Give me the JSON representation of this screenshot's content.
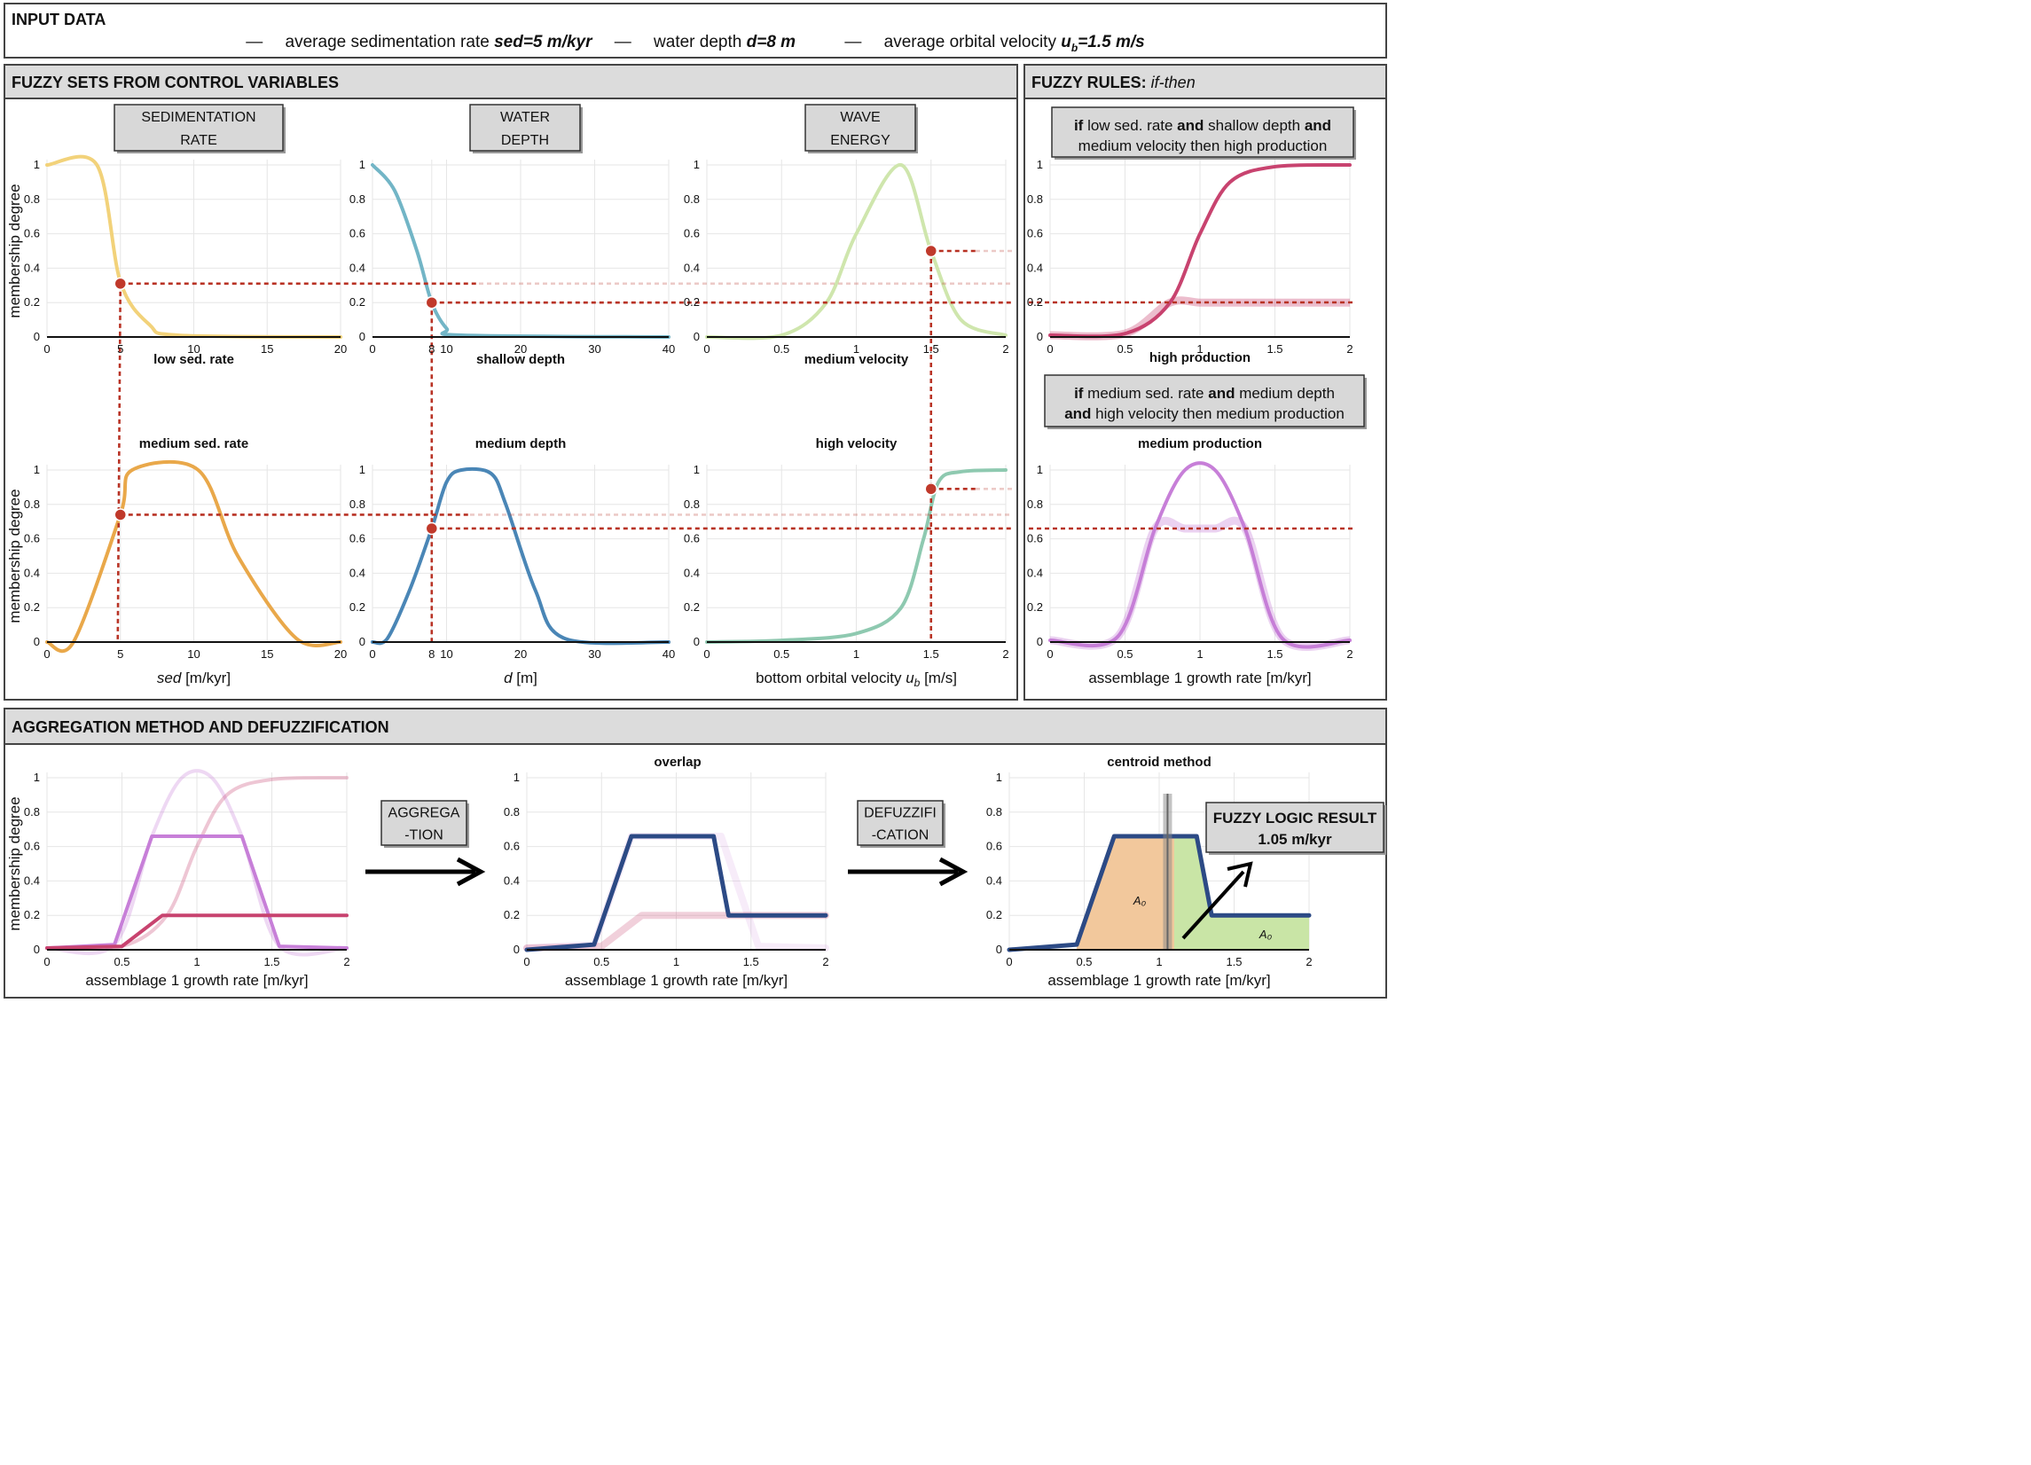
{
  "input_data": {
    "title": "INPUT DATA",
    "items": [
      {
        "dash": "—",
        "text": "average sedimentation rate ",
        "value": "sed=5 m/kyr"
      },
      {
        "dash": "—",
        "text": "water depth ",
        "value": "d=8 m"
      },
      {
        "dash": "—",
        "text": "average orbital velocity ",
        "value": "u_b=1.5 m/s"
      }
    ]
  },
  "fuzzy_sets": {
    "title": "FUZZY SETS FROM CONTROL VARIABLES",
    "ylabel": "membership degree",
    "variables": [
      {
        "box": [
          "SEDIMENTATION",
          "RATE"
        ],
        "set_top": "low sed. rate",
        "set_bottom": "medium sed. rate",
        "xlabel_italic": "sed",
        "xlabel_rest": " [m/kyr]",
        "ticks": [
          "0",
          "5",
          "10",
          "15",
          "20"
        ],
        "input_tick": "5"
      },
      {
        "box": [
          "WATER",
          "DEPTH"
        ],
        "set_top": "shallow depth",
        "set_bottom": "medium depth",
        "xlabel_italic": "d",
        "xlabel_rest": " [m]",
        "ticks": [
          "0",
          "8",
          "10",
          "20",
          "30",
          "40"
        ],
        "input_tick": "8"
      },
      {
        "box": [
          "WAVE",
          "ENERGY"
        ],
        "set_top": "medium velocity",
        "set_bottom": "high velocity",
        "xlabel_italic": "",
        "xlabel_rest": "bottom orbital velocity u_b [m/s]",
        "ticks": [
          "0",
          "0.5",
          "1",
          "1.5",
          "2"
        ],
        "input_tick": "1.5"
      }
    ],
    "y_ticks": [
      "0",
      "0.2",
      "0.4",
      "0.6",
      "0.8",
      "1"
    ]
  },
  "fuzzy_rules": {
    "title": "FUZZY RULES",
    "title_suffix": "if-then",
    "rule1": [
      "if low sed. rate and shallow depth and",
      "medium velocity then high production"
    ],
    "rule2": [
      "if medium sed. rate and medium depth",
      "and high velocity then medium production"
    ],
    "set_top": "high production",
    "set_bottom": "medium production",
    "xlabel": "assemblage 1 growth rate [m/kyr]",
    "x_ticks": [
      "0",
      "0.5",
      "1",
      "1.5",
      "2"
    ]
  },
  "aggregation": {
    "title": "AGGREGATION  METHOD AND DEFUZZIFICATION",
    "step1": [
      "AGGREGA",
      "-TION"
    ],
    "step2": [
      "DEFUZZIFI",
      "-CATION"
    ],
    "plot2_title": "overlap",
    "plot3_title": "centroid method",
    "xlabel": "assemblage 1 growth rate [m/kyr]",
    "ylabel": "membership degree",
    "area_label": "A₀",
    "result": [
      "FUZZY LOGIC RESULT",
      "1.05 m/kyr"
    ]
  },
  "chart_data": [
    {
      "type": "line",
      "title": "low sed. rate",
      "xlabel": "sed [m/kyr]",
      "ylabel": "membership degree",
      "xlim": [
        0,
        20
      ],
      "ylim": [
        0,
        1
      ],
      "series": [
        {
          "name": "low sed. rate",
          "x": [
            0,
            3.4,
            5,
            7,
            9,
            20
          ],
          "y": [
            1,
            1,
            0.32,
            0.07,
            0.01,
            0
          ]
        }
      ],
      "input": {
        "x": 5,
        "y": 0.31
      }
    },
    {
      "type": "line",
      "title": "shallow depth",
      "xlabel": "d [m]",
      "ylabel": "membership degree",
      "xlim": [
        0,
        40
      ],
      "ylim": [
        0,
        1
      ],
      "series": [
        {
          "name": "shallow depth",
          "x": [
            0,
            3,
            6,
            8,
            10,
            12,
            40
          ],
          "y": [
            1,
            0.85,
            0.5,
            0.2,
            0.05,
            0.01,
            0
          ]
        }
      ],
      "input": {
        "x": 8,
        "y": 0.2
      }
    },
    {
      "type": "line",
      "title": "medium velocity",
      "xlabel": "bottom orbital velocity u_b [m/s]",
      "ylabel": "membership degree",
      "xlim": [
        0,
        2
      ],
      "ylim": [
        0,
        1
      ],
      "series": [
        {
          "name": "medium velocity",
          "x": [
            0,
            0.5,
            0.8,
            1.0,
            1.3,
            1.5,
            1.7,
            2
          ],
          "y": [
            0,
            0.01,
            0.2,
            0.6,
            1,
            0.5,
            0.1,
            0.01
          ]
        }
      ],
      "input": {
        "x": 1.5,
        "y": 0.5
      }
    },
    {
      "type": "line",
      "title": "high production",
      "xlabel": "assemblage 1 growth rate [m/kyr]",
      "ylim": [
        0,
        1
      ],
      "xlim": [
        0,
        2
      ],
      "series": [
        {
          "name": "high production",
          "x": [
            0,
            0.5,
            0.8,
            1.0,
            1.2,
            1.5,
            2
          ],
          "y": [
            0.01,
            0.02,
            0.2,
            0.6,
            0.9,
            0.99,
            1
          ]
        }
      ],
      "clip": 0.2
    },
    {
      "type": "line",
      "title": "medium sed. rate",
      "xlabel": "sed [m/kyr]",
      "ylabel": "membership degree",
      "xlim": [
        0,
        20
      ],
      "ylim": [
        0,
        1
      ],
      "series": [
        {
          "name": "medium sed. rate",
          "x": [
            0,
            1.8,
            5,
            5.8,
            10.3,
            13,
            17,
            20
          ],
          "y": [
            0,
            0,
            0.74,
            1,
            1,
            0.5,
            0.02,
            0
          ]
        }
      ],
      "input": {
        "x": 5,
        "y": 0.74
      }
    },
    {
      "type": "line",
      "title": "medium depth",
      "xlabel": "d [m]",
      "ylabel": "membership degree",
      "xlim": [
        0,
        40
      ],
      "ylim": [
        0,
        1
      ],
      "series": [
        {
          "name": "medium depth",
          "x": [
            0,
            2,
            5,
            8,
            10,
            12,
            16,
            18,
            22,
            26,
            40
          ],
          "y": [
            0,
            0.02,
            0.3,
            0.66,
            0.93,
            1,
            0.98,
            0.8,
            0.3,
            0.02,
            0
          ]
        }
      ],
      "input": {
        "x": 8,
        "y": 0.66
      }
    },
    {
      "type": "line",
      "title": "high velocity",
      "xlabel": "bottom orbital velocity u_b [m/s]",
      "ylabel": "membership degree",
      "xlim": [
        0,
        2
      ],
      "ylim": [
        0,
        1
      ],
      "series": [
        {
          "name": "high velocity",
          "x": [
            0,
            0.5,
            1.0,
            1.3,
            1.45,
            1.55,
            1.7,
            2
          ],
          "y": [
            0,
            0.01,
            0.05,
            0.2,
            0.6,
            0.93,
            0.99,
            1
          ]
        }
      ],
      "input": {
        "x": 1.5,
        "y": 0.89
      }
    },
    {
      "type": "line",
      "title": "medium production",
      "xlabel": "assemblage 1 growth rate [m/kyr]",
      "xlim": [
        0,
        2
      ],
      "ylim": [
        0,
        1
      ],
      "series": [
        {
          "name": "medium production",
          "x": [
            0,
            0.45,
            0.7,
            0.9,
            1.1,
            1.3,
            1.55,
            2
          ],
          "y": [
            0.01,
            0.03,
            0.66,
            1,
            1,
            0.66,
            0.02,
            0.01
          ]
        }
      ],
      "clip": 0.66
    },
    {
      "type": "line",
      "xlabel": "assemblage 1 growth rate [m/kyr]",
      "ylabel": "membership degree",
      "xlim": [
        0,
        2
      ],
      "ylim": [
        0,
        1
      ],
      "series": [
        {
          "name": "medium production (clipped)",
          "x": [
            0,
            0.45,
            0.7,
            1.3,
            1.55,
            2
          ],
          "y": [
            0.01,
            0.03,
            0.66,
            0.66,
            0.02,
            0.01
          ]
        },
        {
          "name": "high production (clipped)",
          "x": [
            0,
            0.5,
            0.77,
            2
          ],
          "y": [
            0.01,
            0.02,
            0.2,
            0.2
          ]
        }
      ]
    },
    {
      "type": "line",
      "title": "overlap",
      "xlabel": "assemblage 1 growth rate [m/kyr]",
      "xlim": [
        0,
        2
      ],
      "ylim": [
        0,
        1
      ],
      "series": [
        {
          "name": "aggregated",
          "x": [
            0,
            0.45,
            0.7,
            1.25,
            1.35,
            2
          ],
          "y": [
            0,
            0.03,
            0.66,
            0.66,
            0.2,
            0.2
          ]
        }
      ]
    },
    {
      "type": "area",
      "title": "centroid method",
      "xlabel": "assemblage 1 growth rate [m/kyr]",
      "xlim": [
        0,
        2
      ],
      "ylim": [
        0,
        1
      ],
      "series": [
        {
          "name": "aggregated",
          "x": [
            0,
            0.45,
            0.7,
            1.25,
            1.35,
            2
          ],
          "y": [
            0,
            0.03,
            0.66,
            0.66,
            0.2,
            0.2
          ]
        }
      ],
      "centroid": 1.05
    }
  ],
  "colors": {
    "low_sed": "#f2d27a",
    "medium_sed": "#e9a84a",
    "shallow": "#72b5c6",
    "medium_depth": "#4a86b6",
    "medium_vel": "#cfe6ad",
    "high_vel": "#8ec9b0",
    "high_prod": "#c8436f",
    "medium_prod": "#c77fd8",
    "aggregated": "#2c4a85",
    "dashed": "#b83224",
    "area_orange": "#f2c89c",
    "area_green": "#c9e5a6"
  }
}
